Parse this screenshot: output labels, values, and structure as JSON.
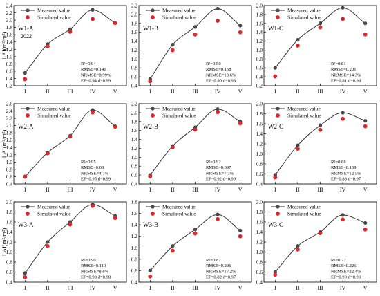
{
  "figure": {
    "x_categories": [
      "I",
      "II",
      "III",
      "IV",
      "V"
    ],
    "ylabel": "LAI(m²/m²)",
    "legend": {
      "measured": "Measured value",
      "simulated": "Simulated value"
    },
    "colors": {
      "measured_line": "#333333",
      "measured_marker": "#4a4a4a",
      "simulated_marker": "#e0262b"
    }
  },
  "chart_data": [
    {
      "type": "line",
      "panel": "W1-A",
      "subtitle": "2022",
      "categories": [
        "I",
        "II",
        "III",
        "IV",
        "V"
      ],
      "series": [
        {
          "name": "Measured value",
          "values": [
            0.55,
            1.34,
            1.75,
            2.28,
            1.92
          ]
        },
        {
          "name": "Simulated value",
          "values": [
            0.38,
            1.28,
            1.68,
            2.03,
            1.92
          ]
        }
      ],
      "ylim": [
        0.2,
        2.4
      ],
      "yticks": [
        0.2,
        0.4,
        0.6,
        0.8,
        1.0,
        1.2,
        1.4,
        1.6,
        1.8,
        2.0,
        2.2,
        2.4
      ],
      "stats": [
        "R²=0.94",
        "RMSE=0.141",
        "NRMSE=8.99%",
        "EF=0.94 d=0.99"
      ]
    },
    {
      "type": "line",
      "panel": "W1-B",
      "categories": [
        "I",
        "II",
        "III",
        "IV",
        "V"
      ],
      "series": [
        {
          "name": "Measured value",
          "values": [
            0.55,
            1.32,
            1.72,
            2.13,
            1.75
          ]
        },
        {
          "name": "Simulated value",
          "values": [
            0.5,
            1.2,
            1.55,
            1.86,
            1.6
          ]
        }
      ],
      "ylim": [
        0.4,
        2.2
      ],
      "yticks": [
        0.4,
        0.6,
        0.8,
        1.0,
        1.2,
        1.4,
        1.6,
        1.8,
        2.0,
        2.2
      ],
      "stats": [
        "R²=0.90",
        "RMSE=0.168",
        "NRMSE=13.6%",
        "EF=0.90 d=0.98"
      ]
    },
    {
      "type": "line",
      "panel": "W1-C",
      "categories": [
        "I",
        "II",
        "III",
        "IV",
        "V"
      ],
      "series": [
        {
          "name": "Measured value",
          "values": [
            0.6,
            1.23,
            1.6,
            1.95,
            1.6
          ]
        },
        {
          "name": "Simulated value",
          "values": [
            0.41,
            1.1,
            1.51,
            1.7,
            1.35
          ]
        }
      ],
      "ylim": [
        0.2,
        2.0
      ],
      "yticks": [
        0.2,
        0.4,
        0.6,
        0.8,
        1.0,
        1.2,
        1.4,
        1.6,
        1.8,
        2.0
      ],
      "stats": [
        "R²=0.81",
        "RMSE=0.201",
        "NRMSE=14.3%",
        "EF=0.81 d=0.98"
      ]
    },
    {
      "type": "line",
      "panel": "W2-A",
      "categories": [
        "I",
        "II",
        "III",
        "IV",
        "V"
      ],
      "series": [
        {
          "name": "Measured value",
          "values": [
            0.6,
            1.26,
            1.72,
            2.43,
            1.98
          ]
        },
        {
          "name": "Simulated value",
          "values": [
            0.6,
            1.24,
            1.7,
            2.36,
            1.97
          ]
        }
      ],
      "ylim": [
        0.4,
        2.6
      ],
      "yticks": [
        0.4,
        0.6,
        0.8,
        1.0,
        1.2,
        1.4,
        1.6,
        1.8,
        2.0,
        2.2,
        2.4,
        2.6
      ],
      "stats": [
        "R²=0.95",
        "RMSE=0.08",
        "NRMSE=4.7%",
        "EF=0.95 d=0.99"
      ]
    },
    {
      "type": "line",
      "panel": "W2-B",
      "categories": [
        "I",
        "II",
        "III",
        "IV",
        "V"
      ],
      "series": [
        {
          "name": "Measured value",
          "values": [
            0.6,
            1.25,
            1.67,
            2.08,
            1.8
          ]
        },
        {
          "name": "Simulated value",
          "values": [
            0.57,
            1.22,
            1.62,
            2.01,
            1.76
          ]
        }
      ],
      "ylim": [
        0.4,
        2.2
      ],
      "yticks": [
        0.4,
        0.6,
        0.8,
        1.0,
        1.2,
        1.4,
        1.6,
        1.8,
        2.0,
        2.2
      ],
      "stats": [
        "R²=0.92",
        "RMSE=0.097",
        "NRMSE=7.3%",
        "EF=0.92 d=0.99"
      ]
    },
    {
      "type": "line",
      "panel": "W2-C",
      "categories": [
        "I",
        "II",
        "III",
        "IV",
        "V"
      ],
      "series": [
        {
          "name": "Measured value",
          "values": [
            0.58,
            1.17,
            1.57,
            1.82,
            1.66
          ]
        },
        {
          "name": "Simulated value",
          "values": [
            0.53,
            1.1,
            1.48,
            1.7,
            1.55
          ]
        }
      ],
      "ylim": [
        0.4,
        2.0
      ],
      "yticks": [
        0.4,
        0.6,
        0.8,
        1.0,
        1.2,
        1.4,
        1.6,
        1.8,
        2.0
      ],
      "stats": [
        "R²=0.88",
        "RMSE=0.139",
        "NRMSE=12.5%",
        "EF=0.88 d=0.97"
      ]
    },
    {
      "type": "line",
      "panel": "W3-A",
      "categories": [
        "I",
        "II",
        "III",
        "IV",
        "V"
      ],
      "series": [
        {
          "name": "Measured value",
          "values": [
            0.58,
            1.2,
            1.6,
            1.95,
            1.72
          ]
        },
        {
          "name": "Simulated value",
          "values": [
            0.5,
            1.12,
            1.55,
            1.92,
            1.68
          ]
        }
      ],
      "ylim": [
        0.4,
        2.0
      ],
      "yticks": [
        0.4,
        0.6,
        0.8,
        1.0,
        1.2,
        1.4,
        1.6,
        1.8,
        2.0
      ],
      "stats": [
        "R²=0.90",
        "RMSE=0.110",
        "NRMSE=8.6%",
        "EF=0.90 d=0.98"
      ]
    },
    {
      "type": "line",
      "panel": "W3-B",
      "categories": [
        "I",
        "II",
        "III",
        "IV",
        "V"
      ],
      "series": [
        {
          "name": "Measured value",
          "values": [
            0.6,
            1.03,
            1.32,
            1.58,
            1.3
          ]
        },
        {
          "name": "Simulated value",
          "values": [
            0.5,
            0.95,
            1.25,
            1.5,
            1.2
          ]
        }
      ],
      "ylim": [
        0.4,
        1.8
      ],
      "yticks": [
        0.4,
        0.6,
        0.8,
        1.0,
        1.2,
        1.4,
        1.6,
        1.8
      ],
      "stats": [
        "R²=0.82",
        "RMSE=0.206",
        "NRMSE=17.2%",
        "EF=0.82 d=0.97"
      ]
    },
    {
      "type": "line",
      "panel": "W3-C",
      "categories": [
        "I",
        "II",
        "III",
        "IV",
        "V"
      ],
      "series": [
        {
          "name": "Measured value",
          "values": [
            0.6,
            1.12,
            1.4,
            1.74,
            1.58
          ]
        },
        {
          "name": "Simulated value",
          "values": [
            0.55,
            1.05,
            1.38,
            1.65,
            1.45
          ]
        }
      ],
      "ylim": [
        0.4,
        2.0
      ],
      "yticks": [
        0.4,
        0.6,
        0.8,
        1.0,
        1.2,
        1.4,
        1.6,
        1.8,
        2.0
      ],
      "stats": [
        "R²=0.77",
        "RMSE=0.226",
        "NRMSE=22.4%",
        "EF=0.90 d=0.99"
      ]
    }
  ]
}
